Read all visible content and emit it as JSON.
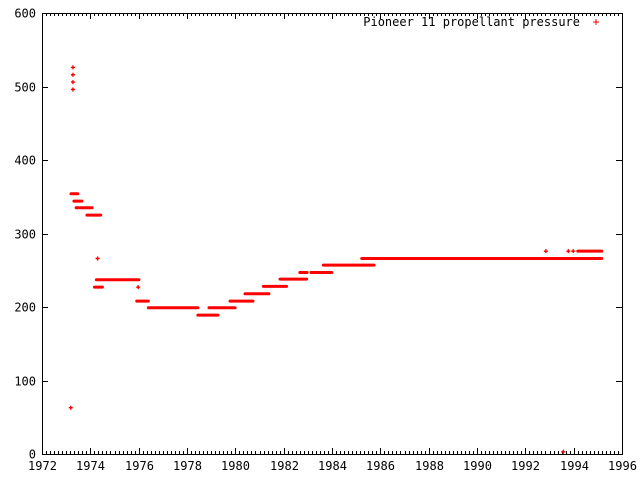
{
  "chart_data": {
    "type": "scatter",
    "title": "Pioneer 11 propellant pressure",
    "legend_label": "Pioneer 11 propellant pressure",
    "legend_position": "top-right",
    "legend_marker": "plus-icon",
    "xlabel": "",
    "ylabel": "",
    "xlim": [
      1972,
      1996
    ],
    "ylim": [
      0,
      600
    ],
    "xticks": [
      1972,
      1974,
      1976,
      1978,
      1980,
      1982,
      1984,
      1986,
      1988,
      1990,
      1992,
      1994,
      1996
    ],
    "yticks": [
      0,
      100,
      200,
      300,
      400,
      500,
      600
    ],
    "x_minor_step_years": 0.1666667,
    "grid": false,
    "colors": {
      "series": "#ff0000",
      "axis": "#000000",
      "background": "#ffffff"
    },
    "series": [
      {
        "name": "Pioneer 11 propellant pressure",
        "marker": "plus",
        "segments": [
          {
            "x1": 1973.2,
            "x2": 1973.48,
            "y": 354
          },
          {
            "x1": 1973.32,
            "x2": 1973.65,
            "y": 344
          },
          {
            "x1": 1973.41,
            "x2": 1974.07,
            "y": 335
          },
          {
            "x1": 1973.86,
            "x2": 1974.43,
            "y": 325
          },
          {
            "x1": 1974.17,
            "x2": 1974.5,
            "y": 227
          },
          {
            "x1": 1974.25,
            "x2": 1976.01,
            "y": 237
          },
          {
            "x1": 1975.92,
            "x2": 1976.4,
            "y": 208
          },
          {
            "x1": 1976.4,
            "x2": 1978.45,
            "y": 199
          },
          {
            "x1": 1978.45,
            "x2": 1979.28,
            "y": 189
          },
          {
            "x1": 1978.91,
            "x2": 1979.99,
            "y": 199
          },
          {
            "x1": 1979.78,
            "x2": 1980.73,
            "y": 208
          },
          {
            "x1": 1980.4,
            "x2": 1981.39,
            "y": 218
          },
          {
            "x1": 1981.16,
            "x2": 1982.12,
            "y": 228
          },
          {
            "x1": 1981.85,
            "x2": 1982.95,
            "y": 238
          },
          {
            "x1": 1982.67,
            "x2": 1982.97,
            "y": 247
          },
          {
            "x1": 1983.13,
            "x2": 1983.99,
            "y": 247
          },
          {
            "x1": 1983.64,
            "x2": 1985.74,
            "y": 257
          },
          {
            "x1": 1985.23,
            "x2": 1995.16,
            "y": 266
          },
          {
            "x1": 1994.17,
            "x2": 1995.16,
            "y": 276
          }
        ],
        "points": [
          {
            "x": 1973.28,
            "y": 526
          },
          {
            "x": 1973.28,
            "y": 516
          },
          {
            "x": 1973.28,
            "y": 506
          },
          {
            "x": 1973.28,
            "y": 496
          },
          {
            "x": 1973.19,
            "y": 63
          },
          {
            "x": 1974.3,
            "y": 266
          },
          {
            "x": 1975.98,
            "y": 227
          },
          {
            "x": 1992.85,
            "y": 276
          },
          {
            "x": 1993.78,
            "y": 276
          },
          {
            "x": 1993.98,
            "y": 276
          },
          {
            "x": 1993.57,
            "y": 3
          }
        ]
      }
    ]
  }
}
